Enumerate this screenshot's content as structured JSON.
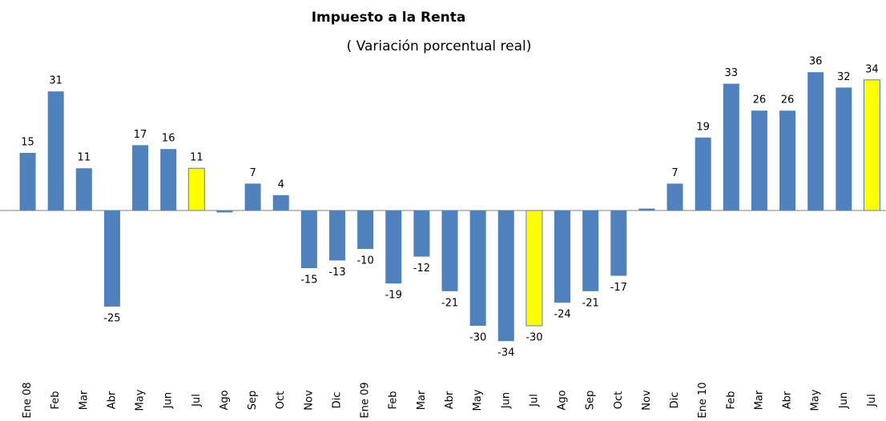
{
  "chart_data": {
    "type": "bar",
    "title": "Impuesto a la Renta",
    "subtitle": "( Variación porcentual real)",
    "categories": [
      "Ene 08",
      "Feb",
      "Mar",
      "Abr",
      "May",
      "Jun",
      "Jul",
      "Ago",
      "Sep",
      "Oct",
      "Nov",
      "Dic",
      "Ene 09",
      "Feb",
      "Mar",
      "Abr",
      "May",
      "Jun",
      "Jul",
      "Ago",
      "Sep",
      "Oct",
      "Nov",
      "Dic",
      "Ene 10",
      "Feb",
      "Mar",
      "Abr",
      "May",
      "Jun",
      "Jul"
    ],
    "values": [
      15,
      31,
      11,
      -25,
      17,
      16,
      11,
      -0.5,
      7,
      4,
      -15,
      -13,
      -10,
      -19,
      -12,
      -21,
      -30,
      -34,
      -30,
      -24,
      -21,
      -17,
      0.5,
      7,
      19,
      33,
      26,
      26,
      36,
      32,
      34
    ],
    "value_labels": [
      "15",
      "31",
      "11",
      "-25",
      "17",
      "16",
      "11",
      null,
      "7",
      "4",
      "-15",
      "-13",
      "-10",
      "-19",
      "-12",
      "-21",
      "-30",
      "-34",
      "-30",
      "-24",
      "-21",
      "-17",
      null,
      "7",
      "19",
      "33",
      "26",
      "26",
      "36",
      "32",
      "34"
    ],
    "colors": [
      "#4f81bd",
      "#4f81bd",
      "#4f81bd",
      "#4f81bd",
      "#4f81bd",
      "#4f81bd",
      "#ffff00",
      "#4f81bd",
      "#4f81bd",
      "#4f81bd",
      "#4f81bd",
      "#4f81bd",
      "#4f81bd",
      "#4f81bd",
      "#4f81bd",
      "#4f81bd",
      "#4f81bd",
      "#4f81bd",
      "#ffff00",
      "#4f81bd",
      "#4f81bd",
      "#4f81bd",
      "#4f81bd",
      "#4f81bd",
      "#4f81bd",
      "#4f81bd",
      "#4f81bd",
      "#4f81bd",
      "#4f81bd",
      "#4f81bd",
      "#ffff00"
    ],
    "ylim": [
      -36,
      38
    ]
  }
}
